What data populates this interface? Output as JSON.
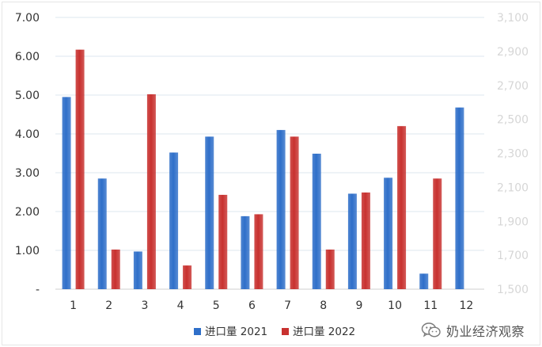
{
  "chart_data": {
    "type": "bar",
    "categories": [
      "1",
      "2",
      "3",
      "4",
      "5",
      "6",
      "7",
      "8",
      "9",
      "10",
      "11",
      "12"
    ],
    "series": [
      {
        "name": "进口量 2021",
        "color": "#2f6fc9",
        "values": [
          4.95,
          2.85,
          0.97,
          3.52,
          3.93,
          1.88,
          4.1,
          3.49,
          2.46,
          2.87,
          0.4,
          4.68
        ]
      },
      {
        "name": "进口量 2022",
        "color": "#c8312f",
        "values": [
          6.17,
          1.02,
          5.02,
          0.61,
          2.43,
          1.93,
          3.93,
          1.02,
          2.49,
          4.2,
          2.85,
          null
        ]
      }
    ],
    "ylim": [
      0,
      7
    ],
    "y_ticks": [
      "-",
      "1.00",
      "2.00",
      "3.00",
      "4.00",
      "5.00",
      "6.00",
      "7.00"
    ],
    "y2_ticks": [
      "1,500",
      "1,700",
      "1,900",
      "2,100",
      "2,300",
      "2,500",
      "2,700",
      "2,900",
      "3,100"
    ],
    "grid": true,
    "legend_position": "bottom"
  },
  "watermark": {
    "text": "奶业经济观察",
    "icon": "wechat-icon"
  }
}
